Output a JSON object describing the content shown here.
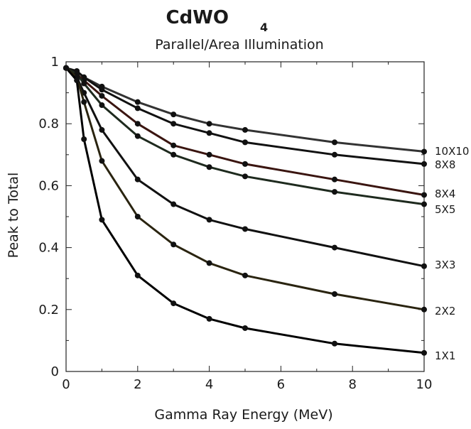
{
  "chart_data": {
    "type": "line",
    "title_main": "CdWO",
    "title_sub": "4",
    "subtitle": "Parallel/Area Illumination",
    "xlabel": "Gamma Ray Energy (MeV)",
    "ylabel": "Peak to Total",
    "xlim": [
      0,
      10
    ],
    "ylim": [
      0,
      1
    ],
    "xticks": [
      "0",
      "2",
      "4",
      "6",
      "8",
      "10"
    ],
    "yticks": [
      "0",
      "0.2",
      "0.4",
      "0.6",
      "0.8",
      "1"
    ],
    "grid": false,
    "x": [
      0,
      0.3,
      0.5,
      1,
      2,
      3,
      4,
      5,
      7.5,
      10
    ],
    "series": [
      {
        "name": "10X10",
        "color": "#333333",
        "values": [
          0.98,
          0.97,
          0.95,
          0.92,
          0.87,
          0.83,
          0.8,
          0.78,
          0.74,
          0.71
        ]
      },
      {
        "name": "8X8",
        "color": "#111111",
        "values": [
          0.98,
          0.97,
          0.95,
          0.91,
          0.85,
          0.8,
          0.77,
          0.74,
          0.7,
          0.67
        ]
      },
      {
        "name": "8X4",
        "color": "#3a1510",
        "values": [
          0.98,
          0.96,
          0.94,
          0.89,
          0.8,
          0.73,
          0.7,
          0.67,
          0.62,
          0.57
        ]
      },
      {
        "name": "5X5",
        "color": "#1e2a1e",
        "values": [
          0.98,
          0.96,
          0.93,
          0.86,
          0.76,
          0.7,
          0.66,
          0.63,
          0.58,
          0.54
        ]
      },
      {
        "name": "3X3",
        "color": "#111111",
        "values": [
          0.98,
          0.95,
          0.9,
          0.78,
          0.62,
          0.54,
          0.49,
          0.46,
          0.4,
          0.34
        ]
      },
      {
        "name": "2X2",
        "color": "#2a2410",
        "values": [
          0.98,
          0.95,
          0.87,
          0.68,
          0.5,
          0.41,
          0.35,
          0.31,
          0.25,
          0.2
        ]
      },
      {
        "name": "1X1",
        "color": "#000000",
        "values": [
          0.98,
          0.94,
          0.75,
          0.49,
          0.31,
          0.22,
          0.17,
          0.14,
          0.09,
          0.06
        ]
      }
    ]
  }
}
